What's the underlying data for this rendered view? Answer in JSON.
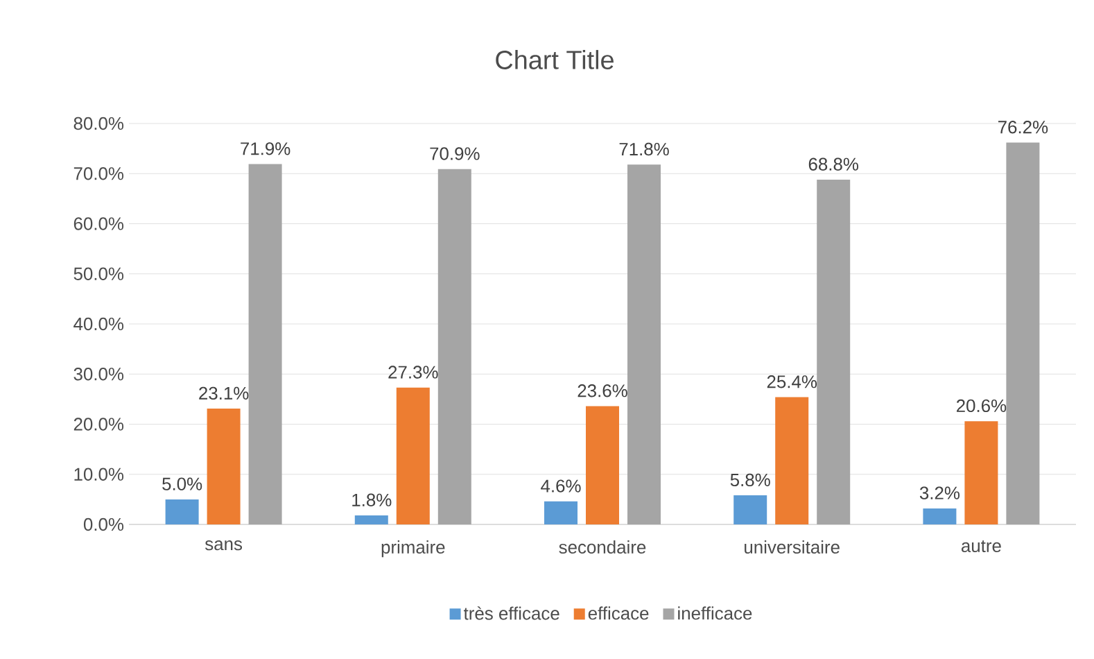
{
  "chart_data": {
    "type": "bar",
    "title": "Chart Title",
    "categories": [
      "sans",
      "primaire",
      "secondaire",
      "universitaire",
      "autre"
    ],
    "series": [
      {
        "name": "très efficace",
        "color": "#5b9bd5",
        "values": [
          5.0,
          1.8,
          4.6,
          5.8,
          3.2
        ],
        "value_labels": [
          "5.0%",
          "1.8%",
          "4.6%",
          "5.8%",
          "3.2%"
        ]
      },
      {
        "name": "efficace",
        "color": "#ed7d31",
        "values": [
          23.1,
          27.3,
          23.6,
          25.4,
          20.6
        ],
        "value_labels": [
          "23.1%",
          "27.3%",
          "23.6%",
          "25.4%",
          "20.6%"
        ]
      },
      {
        "name": "inefficace",
        "color": "#a5a5a5",
        "values": [
          71.9,
          70.9,
          71.8,
          68.8,
          76.2
        ],
        "value_labels": [
          "71.9%",
          "70.9%",
          "71.8%",
          "68.8%",
          "76.2%"
        ]
      }
    ],
    "ylim": [
      0,
      80
    ],
    "yticks": [
      {
        "value": 0,
        "label": "0.0%"
      },
      {
        "value": 10,
        "label": "10.0%"
      },
      {
        "value": 20,
        "label": "20.0%"
      },
      {
        "value": 30,
        "label": "30.0%"
      },
      {
        "value": 40,
        "label": "40.0%"
      },
      {
        "value": 50,
        "label": "50.0%"
      },
      {
        "value": 60,
        "label": "60.0%"
      },
      {
        "value": 70,
        "label": "70.0%"
      },
      {
        "value": 80,
        "label": "80.0%"
      }
    ],
    "grid": "y",
    "legend": "bottom"
  }
}
